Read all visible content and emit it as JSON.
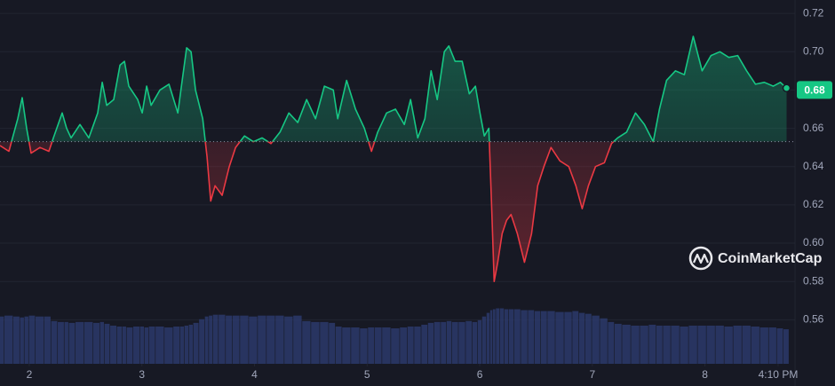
{
  "chart_data": {
    "type": "line",
    "xlim": [
      1.74,
      8.8
    ],
    "ylim": [
      0.537,
      0.727
    ],
    "y2lim": [
      0,
      400
    ],
    "xticks": [
      2,
      3,
      4,
      5,
      6,
      7,
      8,
      {
        "value": 8.65,
        "label": "4:10 PM"
      }
    ],
    "yticks": [
      0.56,
      0.58,
      {
        "value": 0.6,
        "label": "0.60"
      },
      0.62,
      0.64,
      0.66,
      0.68,
      {
        "value": 0.7,
        "label": "0.70"
      },
      0.72
    ],
    "grid": true,
    "baseline": 0.653,
    "current_price": 0.68,
    "watermark": "CoinMarketCap",
    "up_color": "#16c784",
    "down_color": "#ea3943",
    "x": [
      1.74,
      1.819,
      1.898,
      1.937,
      1.977,
      2.016,
      2.095,
      2.174,
      2.214,
      2.292,
      2.332,
      2.371,
      2.45,
      2.529,
      2.608,
      2.648,
      2.687,
      2.75,
      2.806,
      2.845,
      2.884,
      2.963,
      3.003,
      3.042,
      3.082,
      3.161,
      3.24,
      3.319,
      3.358,
      3.397,
      3.437,
      3.476,
      3.54,
      3.579,
      3.611,
      3.65,
      3.713,
      3.776,
      3.832,
      3.911,
      3.99,
      4.068,
      4.147,
      4.226,
      4.305,
      4.384,
      4.463,
      4.542,
      4.621,
      4.7,
      4.739,
      4.818,
      4.897,
      4.976,
      5.039,
      5.094,
      5.173,
      5.252,
      5.331,
      5.386,
      5.45,
      5.513,
      5.568,
      5.623,
      5.686,
      5.726,
      5.781,
      5.844,
      5.907,
      5.962,
      6.002,
      6.041,
      6.081,
      6.105,
      6.128,
      6.16,
      6.199,
      6.239,
      6.278,
      6.334,
      6.397,
      6.46,
      6.515,
      6.57,
      6.633,
      6.712,
      6.791,
      6.854,
      6.91,
      6.965,
      7.028,
      7.107,
      7.17,
      7.225,
      7.304,
      7.383,
      7.462,
      7.541,
      7.596,
      7.659,
      7.738,
      7.817,
      7.896,
      7.975,
      8.054,
      8.133,
      8.212,
      8.291,
      8.37,
      8.449,
      8.528,
      8.607,
      8.67,
      8.725
    ],
    "series": [
      {
        "color": "#16c784",
        "values": [
          0.651,
          0.648,
          0.665,
          0.676,
          0.66,
          0.647,
          0.65,
          0.648,
          0.655,
          0.668,
          0.66,
          0.655,
          0.662,
          0.655,
          0.668,
          0.684,
          0.672,
          0.675,
          0.693,
          0.695,
          0.682,
          0.675,
          0.668,
          0.682,
          0.672,
          0.68,
          0.683,
          0.668,
          0.685,
          0.702,
          0.7,
          0.68,
          0.665,
          0.645,
          0.622,
          0.63,
          0.625,
          0.64,
          0.65,
          0.656,
          0.653,
          0.655,
          0.652,
          0.658,
          0.668,
          0.663,
          0.675,
          0.665,
          0.682,
          0.68,
          0.665,
          0.685,
          0.67,
          0.66,
          0.648,
          0.658,
          0.668,
          0.67,
          0.662,
          0.675,
          0.655,
          0.665,
          0.69,
          0.675,
          0.7,
          0.703,
          0.695,
          0.695,
          0.678,
          0.682,
          0.668,
          0.656,
          0.66,
          0.62,
          0.58,
          0.59,
          0.605,
          0.612,
          0.615,
          0.605,
          0.59,
          0.605,
          0.63,
          0.64,
          0.65,
          0.643,
          0.64,
          0.63,
          0.618,
          0.63,
          0.64,
          0.642,
          0.652,
          0.655,
          0.658,
          0.668,
          0.662,
          0.653,
          0.67,
          0.685,
          0.69,
          0.688,
          0.708,
          0.69,
          0.698,
          0.7,
          0.697,
          0.698,
          0.69,
          0.683,
          0.684,
          0.682,
          0.684,
          0.681
        ]
      },
      {
        "color": "#2b3a6b",
        "axis": "y2",
        "values": [
          52,
          53,
          52,
          51,
          52,
          53,
          52,
          52,
          47,
          46,
          46,
          45,
          46,
          46,
          45,
          46,
          44,
          42,
          41,
          41,
          40,
          41,
          41,
          40,
          41,
          41,
          40,
          41,
          41,
          42,
          43,
          45,
          49,
          52,
          53,
          54,
          54,
          53,
          53,
          53,
          52,
          53,
          53,
          53,
          52,
          53,
          47,
          46,
          46,
          45,
          41,
          40,
          40,
          39,
          40,
          40,
          40,
          39,
          40,
          41,
          41,
          43,
          45,
          46,
          46,
          47,
          46,
          46,
          47,
          46,
          48,
          52,
          56,
          59,
          60,
          61,
          61,
          60,
          60,
          60,
          59,
          59,
          58,
          58,
          58,
          57,
          57,
          58,
          56,
          55,
          53,
          50,
          46,
          44,
          43,
          42,
          42,
          43,
          42,
          42,
          42,
          41,
          42,
          42,
          42,
          42,
          41,
          42,
          42,
          41,
          40,
          40,
          39,
          38
        ]
      }
    ]
  }
}
